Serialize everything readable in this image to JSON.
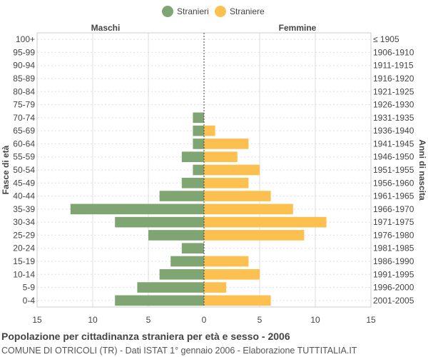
{
  "chart_data": {
    "type": "bar",
    "orientation": "horizontal",
    "layout": "population-pyramid",
    "legend": {
      "position": "top",
      "entries": [
        "Stranieri",
        "Straniere"
      ]
    },
    "left_header": "Maschi",
    "right_header": "Femmine",
    "ylabel_left": "Fasce di età",
    "ylabel_right": "Anni di nascita",
    "categories": [
      "100+",
      "95-99",
      "90-94",
      "85-89",
      "80-84",
      "75-79",
      "70-74",
      "65-69",
      "60-64",
      "55-59",
      "50-54",
      "45-49",
      "40-44",
      "35-39",
      "30-34",
      "25-29",
      "20-24",
      "15-19",
      "10-14",
      "5-9",
      "0-4"
    ],
    "birth_years": [
      "≤ 1905",
      "1906-1910",
      "1911-1915",
      "1916-1920",
      "1921-1925",
      "1926-1930",
      "1931-1935",
      "1936-1940",
      "1941-1945",
      "1946-1950",
      "1951-1955",
      "1956-1960",
      "1961-1965",
      "1966-1970",
      "1971-1975",
      "1976-1980",
      "1981-1985",
      "1986-1990",
      "1991-1995",
      "1996-2000",
      "2001-2005"
    ],
    "series": [
      {
        "name": "Stranieri",
        "side": "left",
        "color": "#7fa572",
        "values": [
          0,
          0,
          0,
          0,
          0,
          0,
          1,
          1,
          1,
          2,
          1,
          2,
          4,
          12,
          8,
          5,
          2,
          3,
          4,
          6,
          8
        ]
      },
      {
        "name": "Straniere",
        "side": "right",
        "color": "#fbc04f",
        "values": [
          0,
          0,
          0,
          0,
          0,
          0,
          0,
          1,
          4,
          3,
          5,
          4,
          6,
          8,
          11,
          9,
          0,
          4,
          5,
          2,
          6
        ]
      }
    ],
    "xlim": [
      -15,
      15
    ],
    "x_ticks": [
      "15",
      "10",
      "5",
      "0",
      "5",
      "10",
      "15"
    ],
    "grid": true
  },
  "footer": {
    "title": "Popolazione per cittadinanza straniera per età e sesso - 2006",
    "subtitle": "COMUNE DI OTRICOLI (TR) - Dati ISTAT 1° gennaio 2006 - Elaborazione TUTTITALIA.IT"
  }
}
